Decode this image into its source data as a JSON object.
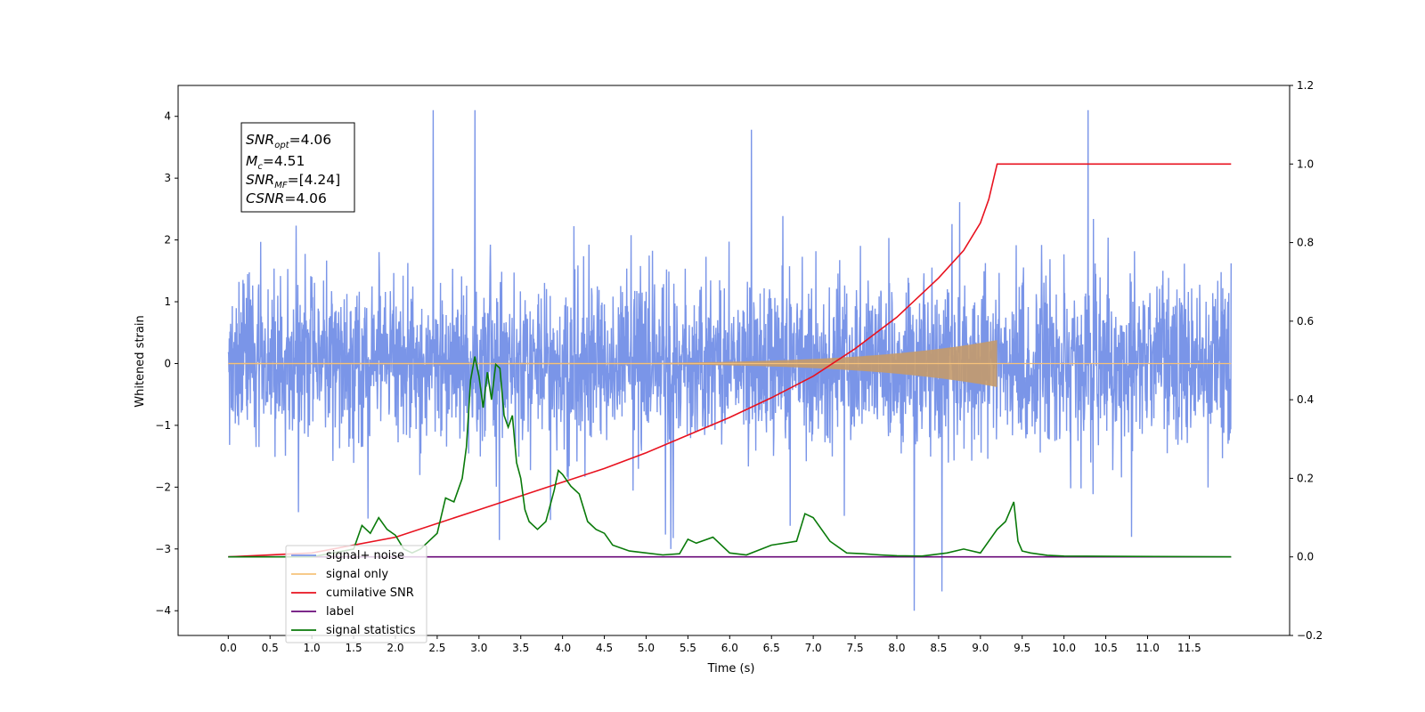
{
  "chart_data": {
    "type": "line",
    "xlabel": "Time (s)",
    "ylabel": "Whitened strain",
    "xlim": [
      -0.6,
      12.7
    ],
    "ylim_left": [
      -4.4,
      4.5
    ],
    "ylim_right": [
      -0.2,
      1.2
    ],
    "x_ticks": [
      0.0,
      0.5,
      1.0,
      1.5,
      2.0,
      2.5,
      3.0,
      3.5,
      4.0,
      4.5,
      5.0,
      5.5,
      6.0,
      6.5,
      7.0,
      7.5,
      8.0,
      8.5,
      9.0,
      9.5,
      10.0,
      10.5,
      11.0,
      11.5
    ],
    "x_tick_labels": [
      "0.0",
      "0.5",
      "1.0",
      "1.5",
      "2.0",
      "2.5",
      "3.0",
      "3.5",
      "4.0",
      "4.5",
      "5.0",
      "5.5",
      "6.0",
      "6.5",
      "7.0",
      "7.5",
      "8.0",
      "8.5",
      "9.0",
      "9.5",
      "10.0",
      "10.5",
      "11.0",
      "11.5"
    ],
    "left_y_ticks": [
      -4,
      -3,
      -2,
      -1,
      0,
      1,
      2,
      3,
      4
    ],
    "left_y_tick_labels": [
      "−4",
      "−3",
      "−2",
      "−1",
      "0",
      "1",
      "2",
      "3",
      "4"
    ],
    "right_y_ticks": [
      -0.2,
      0.0,
      0.2,
      0.4,
      0.6,
      0.8,
      1.0,
      1.2
    ],
    "right_y_tick_labels": [
      "−0.2",
      "0.0",
      "0.2",
      "0.4",
      "0.6",
      "0.8",
      "1.0",
      "1.2"
    ],
    "annotation": [
      {
        "base": "SNR",
        "sub": "opt",
        "value": "=4.06"
      },
      {
        "base": "M",
        "sub": "c",
        "value": "=4.51"
      },
      {
        "base": "SNR",
        "sub": "MF",
        "value": "=[4.24]"
      },
      {
        "base": "CSNR",
        "sub": "",
        "value": "=4.06"
      }
    ],
    "legend": {
      "location": "lower-left",
      "entries": [
        "signal+ noise",
        "signal only",
        "cumilative SNR",
        "label",
        "signal statistics"
      ]
    },
    "series": [
      {
        "name": "signal+ noise",
        "axis": "left",
        "color": "#7a95e8",
        "x_range": [
          0.0,
          12.0
        ],
        "y_range_approx": [
          -4.0,
          4.1
        ]
      },
      {
        "name": "signal only",
        "axis": "left",
        "color": "#f6c27a",
        "x_range": [
          0.0,
          12.0
        ],
        "chirp_end": 9.2,
        "amplitude_at_end": 0.38
      },
      {
        "name": "cumilative SNR",
        "axis": "right",
        "color": "#e8121f",
        "x": [
          0.0,
          1.0,
          2.0,
          3.0,
          3.5,
          4.0,
          4.5,
          5.0,
          5.5,
          6.0,
          6.5,
          7.0,
          7.5,
          8.0,
          8.5,
          8.8,
          9.0,
          9.1,
          9.2,
          12.0
        ],
        "values": [
          0.0,
          0.01,
          0.05,
          0.12,
          0.155,
          0.19,
          0.225,
          0.265,
          0.31,
          0.355,
          0.405,
          0.46,
          0.53,
          0.61,
          0.71,
          0.78,
          0.85,
          0.91,
          1.0,
          1.0
        ]
      },
      {
        "name": "label",
        "axis": "right",
        "color": "#6a0a7a",
        "x": [
          0.0,
          12.0
        ],
        "values": [
          0.0,
          0.0
        ]
      },
      {
        "name": "signal statistics",
        "axis": "right",
        "color": "#0a7a0a",
        "x": [
          0.0,
          1.0,
          1.5,
          1.6,
          1.7,
          1.8,
          1.9,
          2.0,
          2.1,
          2.2,
          2.3,
          2.4,
          2.5,
          2.6,
          2.7,
          2.8,
          2.85,
          2.9,
          2.95,
          3.0,
          3.05,
          3.1,
          3.15,
          3.2,
          3.25,
          3.3,
          3.35,
          3.4,
          3.45,
          3.5,
          3.55,
          3.6,
          3.65,
          3.7,
          3.8,
          3.9,
          3.95,
          4.0,
          4.1,
          4.2,
          4.3,
          4.4,
          4.5,
          4.6,
          4.8,
          5.0,
          5.2,
          5.4,
          5.5,
          5.6,
          5.8,
          6.0,
          6.2,
          6.5,
          6.8,
          6.9,
          7.0,
          7.2,
          7.4,
          7.6,
          7.8,
          8.0,
          8.3,
          8.6,
          8.8,
          9.0,
          9.2,
          9.3,
          9.4,
          9.45,
          9.5,
          9.6,
          9.8,
          10.0,
          12.0
        ],
        "values": [
          0.0,
          0.0,
          0.02,
          0.08,
          0.06,
          0.1,
          0.07,
          0.055,
          0.02,
          0.01,
          0.02,
          0.04,
          0.06,
          0.15,
          0.14,
          0.2,
          0.28,
          0.45,
          0.51,
          0.46,
          0.38,
          0.47,
          0.4,
          0.49,
          0.48,
          0.36,
          0.33,
          0.36,
          0.24,
          0.2,
          0.12,
          0.09,
          0.08,
          0.07,
          0.09,
          0.17,
          0.22,
          0.21,
          0.18,
          0.16,
          0.09,
          0.07,
          0.06,
          0.03,
          0.015,
          0.01,
          0.005,
          0.008,
          0.045,
          0.035,
          0.05,
          0.01,
          0.005,
          0.03,
          0.04,
          0.11,
          0.1,
          0.04,
          0.01,
          0.008,
          0.005,
          0.003,
          0.002,
          0.01,
          0.02,
          0.01,
          0.07,
          0.09,
          0.14,
          0.04,
          0.015,
          0.01,
          0.004,
          0.002,
          0.0
        ]
      }
    ]
  }
}
